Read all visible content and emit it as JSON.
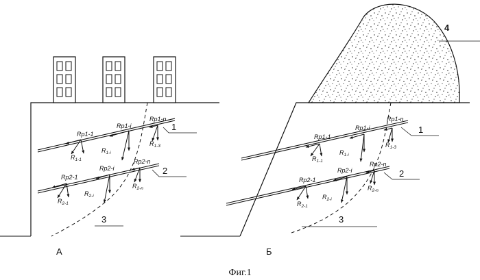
{
  "caption": "Фиг.1",
  "panel_a": {
    "label": "А",
    "anchor1_label": "1",
    "anchor2_label": "2",
    "slip_label": "3",
    "anchor1_forces": [
      {
        "base": "Rp1-1",
        "sub": ""
      },
      {
        "base": "Rp1-i",
        "sub": ""
      },
      {
        "base": "Rp1-n",
        "sub": ""
      }
    ],
    "anchor1_reactions": [
      {
        "base": "R",
        "sub": "1-1"
      },
      {
        "base": "R",
        "sub": "1-i"
      },
      {
        "base": "R",
        "sub": "1-3"
      }
    ],
    "anchor2_forces": [
      {
        "base": "Rp2-1",
        "sub": ""
      },
      {
        "base": "Rp2-i",
        "sub": ""
      },
      {
        "base": "Rp2-n",
        "sub": ""
      }
    ],
    "anchor2_reactions": [
      {
        "base": "R",
        "sub": "2-1"
      },
      {
        "base": "R",
        "sub": "2-i"
      },
      {
        "base": "R",
        "sub": "2-n"
      }
    ]
  },
  "panel_b": {
    "label": "Б",
    "anchor1_label": "1",
    "anchor2_label": "2",
    "slip_label": "3",
    "embankment_label": "4",
    "anchor1_forces": [
      {
        "base": "Rp1-1",
        "sub": ""
      },
      {
        "base": "Rp1-i",
        "sub": ""
      },
      {
        "base": "Rp1-n",
        "sub": ""
      }
    ],
    "anchor1_reactions": [
      {
        "base": "R",
        "sub": "1-1"
      },
      {
        "base": "R",
        "sub": "1-i"
      },
      {
        "base": "R",
        "sub": "1-3"
      }
    ],
    "anchor2_forces": [
      {
        "base": "Rp2-1",
        "sub": ""
      },
      {
        "base": "Rp2-i",
        "sub": ""
      },
      {
        "base": "Rp2-n",
        "sub": ""
      }
    ],
    "anchor2_reactions": [
      {
        "base": "R",
        "sub": "2-1"
      },
      {
        "base": "R",
        "sub": "2-i"
      },
      {
        "base": "R",
        "sub": "2-n"
      }
    ]
  }
}
